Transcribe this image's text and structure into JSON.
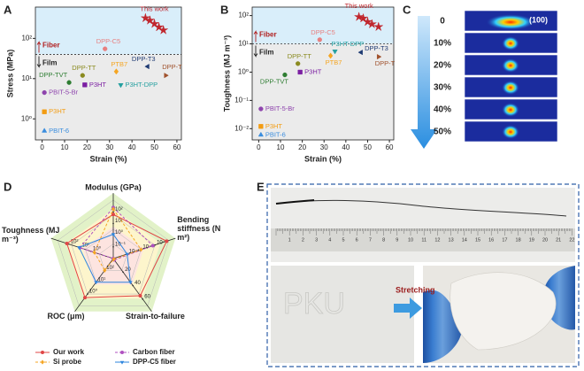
{
  "chart_data": [
    {
      "type": "scatter",
      "panel": "A",
      "xlabel": "Strain (%)",
      "ylabel": "Stress (MPa)",
      "log_y": true,
      "xlim": [
        -3,
        62
      ],
      "xticks": [
        0,
        10,
        20,
        30,
        40,
        50,
        60
      ],
      "ylim": [
        0.3,
        600
      ],
      "yticks": [
        {
          "value": 1,
          "label": "10⁰"
        },
        {
          "value": 10,
          "label": "10¹"
        },
        {
          "value": 100,
          "label": "10²"
        }
      ],
      "threshold": 40,
      "upper_label": "Fiber",
      "lower_label": "Film",
      "series": [
        {
          "name": "This work",
          "color": "#c0262d",
          "marker": "star",
          "x": [
            46,
            48,
            50,
            52,
            54
          ],
          "values": [
            320,
            280,
            230,
            190,
            160
          ]
        },
        {
          "name": "DPP-C5",
          "color": "#e88080",
          "marker": "circle",
          "x": [
            28
          ],
          "values": [
            55
          ]
        },
        {
          "name": "PTB7",
          "color": "#f5a623",
          "marker": "diamond",
          "x": [
            33
          ],
          "values": [
            15
          ]
        },
        {
          "name": "DPP-T3",
          "color": "#1f3b73",
          "marker": "tri-left",
          "x": [
            47
          ],
          "values": [
            20
          ]
        },
        {
          "name": "DPP-T",
          "color": "#a0522d",
          "marker": "tri-right",
          "x": [
            55
          ],
          "values": [
            12
          ]
        },
        {
          "name": "DPP-TT",
          "color": "#8a8a1f",
          "marker": "circle",
          "x": [
            18
          ],
          "values": [
            12
          ]
        },
        {
          "name": "DPP-TVT",
          "color": "#2e7d32",
          "marker": "circle",
          "x": [
            12
          ],
          "values": [
            8
          ]
        },
        {
          "name": "P3HT",
          "color": "#7b1fa2",
          "marker": "square",
          "x": [
            19
          ],
          "values": [
            7
          ]
        },
        {
          "name": "P3HT-DPP",
          "color": "#26a0a0",
          "marker": "tri-down",
          "x": [
            35
          ],
          "values": [
            7
          ]
        },
        {
          "name": "PBIT-5-Br",
          "color": "#8e44ad",
          "marker": "circle",
          "x": [
            1
          ],
          "values": [
            4.5
          ]
        },
        {
          "name": "P3HT",
          "color": "#f39c12",
          "marker": "square",
          "x": [
            1
          ],
          "values": [
            1.5
          ]
        },
        {
          "name": "PBIT-6",
          "color": "#3a8dde",
          "marker": "tri-up",
          "x": [
            1
          ],
          "values": [
            0.5
          ]
        }
      ]
    },
    {
      "type": "scatter",
      "panel": "B",
      "xlabel": "Strain (%)",
      "ylabel": "Toughness (MJ m⁻³)",
      "log_y": true,
      "xlim": [
        -3,
        62
      ],
      "xticks": [
        0,
        10,
        20,
        30,
        40,
        50,
        60
      ],
      "ylim": [
        0.004,
        200
      ],
      "yticks": [
        {
          "value": 0.01,
          "label": "10⁻²"
        },
        {
          "value": 0.1,
          "label": "10⁻¹"
        },
        {
          "value": 1,
          "label": "10⁰"
        },
        {
          "value": 10,
          "label": "10¹"
        },
        {
          "value": 100,
          "label": "10²"
        }
      ],
      "threshold": 10,
      "upper_label": "Fiber",
      "lower_label": "Film",
      "series": [
        {
          "name": "This work",
          "color": "#c0262d",
          "marker": "star",
          "x": [
            46,
            48,
            50,
            52,
            55
          ],
          "values": [
            90,
            80,
            60,
            50,
            40
          ]
        },
        {
          "name": "DPP-C5",
          "color": "#e88080",
          "marker": "circle",
          "x": [
            28
          ],
          "values": [
            14
          ]
        },
        {
          "name": "PTB7",
          "color": "#f5a623",
          "marker": "diamond",
          "x": [
            33
          ],
          "values": [
            3.8
          ]
        },
        {
          "name": "DPP-T3",
          "color": "#1f3b73",
          "marker": "tri-left",
          "x": [
            47
          ],
          "values": [
            5
          ]
        },
        {
          "name": "DPP-T",
          "color": "#a0522d",
          "marker": "tri-right",
          "x": [
            55
          ],
          "values": [
            3.5
          ]
        },
        {
          "name": "DPP-TT",
          "color": "#8a8a1f",
          "marker": "circle",
          "x": [
            18
          ],
          "values": [
            2
          ]
        },
        {
          "name": "DPP-TVT",
          "color": "#2e7d32",
          "marker": "circle",
          "x": [
            12
          ],
          "values": [
            0.8
          ]
        },
        {
          "name": "P3HT",
          "color": "#7b1fa2",
          "marker": "square",
          "x": [
            19
          ],
          "values": [
            1
          ]
        },
        {
          "name": "P3HT-DPP",
          "color": "#26a0a0",
          "marker": "tri-down",
          "x": [
            35
          ],
          "values": [
            5.5
          ]
        },
        {
          "name": "PBIT-5-Br",
          "color": "#8e44ad",
          "marker": "circle",
          "x": [
            1
          ],
          "values": [
            0.05
          ]
        },
        {
          "name": "P3HT",
          "color": "#f39c12",
          "marker": "square",
          "x": [
            1
          ],
          "values": [
            0.012
          ]
        },
        {
          "name": "PBIT-6",
          "color": "#3a8dde",
          "marker": "tri-up",
          "x": [
            1
          ],
          "values": [
            0.006
          ]
        }
      ]
    },
    {
      "type": "radar",
      "panel": "D",
      "axes": [
        {
          "name": "Modulus (GPa)",
          "log": true,
          "lim": [
            0.01,
            1000
          ],
          "ticks": [
            {
              "value": 0.1,
              "label": "10⁻¹"
            },
            {
              "value": 1,
              "label": "10⁰"
            },
            {
              "value": 10,
              "label": "10¹"
            },
            {
              "value": 100,
              "label": "10²"
            }
          ]
        },
        {
          "name": "Bending stiffness (N m²)",
          "log": true,
          "lim": [
            1e-15,
            1e-07
          ],
          "ticks": [
            {
              "value": 1e-13,
              "label": "10⁻¹³"
            },
            {
              "value": 1e-11,
              "label": "10⁻¹¹"
            },
            {
              "value": 1e-09,
              "label": "10⁻⁹"
            }
          ]
        },
        {
          "name": "Strain-to-failure",
          "log": false,
          "lim": [
            0,
            70
          ],
          "ticks": [
            20,
            40,
            60
          ]
        },
        {
          "name": "ROC (μm)",
          "log": true,
          "lim": [
            1000,
            0.1
          ],
          "ticks": [
            {
              "value": 100,
              "label": "10²"
            },
            {
              "value": 10,
              "label": "10¹"
            },
            {
              "value": 1,
              "label": "10⁰"
            }
          ]
        },
        {
          "name": "Toughness (MJ m⁻³)",
          "log": true,
          "lim": [
            0.01,
            1000
          ],
          "ticks": [
            {
              "value": 1,
              "label": "10⁰"
            },
            {
              "value": 10,
              "label": "10¹"
            },
            {
              "value": 100,
              "label": "10²"
            }
          ]
        }
      ],
      "series": [
        {
          "name": "Our work",
          "color": "#e04646",
          "dashed": false,
          "marker": "circle",
          "values": [
            60,
            5e-08,
            55,
            0.5,
            150
          ]
        },
        {
          "name": "Carbon fiber",
          "color": "#b050c0",
          "dashed": true,
          "marker": "circle",
          "values": [
            230,
            5e-10,
            2,
            1000,
            10
          ]
        },
        {
          "name": "Si probe",
          "color": "#f5a623",
          "dashed": true,
          "marker": "diamond",
          "values": [
            170,
            1e-11,
            1,
            100,
            0.5
          ]
        },
        {
          "name": "DPP-C5 fiber",
          "color": "#2e86de",
          "dashed": false,
          "marker": "tri-down",
          "values": [
            1.2,
            1e-13,
            35,
            10,
            12
          ]
        }
      ]
    }
  ],
  "panel_c": {
    "panel": "C",
    "peak": "(100)",
    "levels": [
      "0",
      "10%",
      "20%",
      "30%",
      "40%",
      "50%"
    ]
  },
  "panel_e": {
    "panel": "E",
    "arrow_text": "Stretching",
    "ruler": [
      1,
      2,
      3,
      4,
      5,
      6,
      7,
      8,
      9,
      10,
      11,
      12,
      13,
      14,
      15,
      16,
      17,
      18,
      19,
      20,
      21,
      22
    ]
  }
}
